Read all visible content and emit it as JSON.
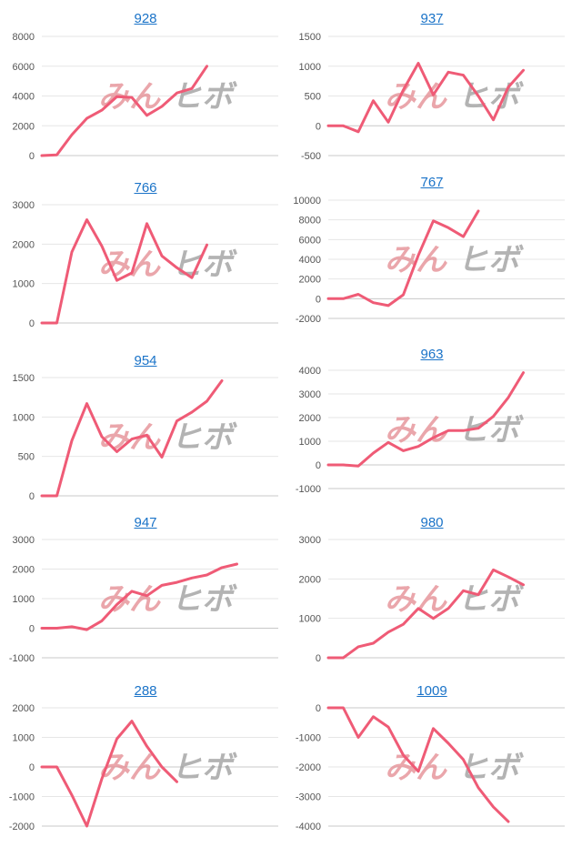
{
  "watermark": {
    "red": "みん",
    "grey": "ヒボ"
  },
  "colors": {
    "series": "#ef5b76",
    "title_link": "#1a73c8",
    "grid": "#e6e6e6"
  },
  "chart_data": [
    {
      "type": "line",
      "title": "928",
      "ylim": [
        0,
        8000
      ],
      "yticks": [
        0,
        2000,
        4000,
        6000,
        8000
      ],
      "series": [
        {
          "values": [
            0,
            50,
            1400,
            2500,
            3050,
            3950,
            3900,
            2700,
            3300,
            4200,
            4500,
            6000
          ]
        }
      ]
    },
    {
      "type": "line",
      "title": "937",
      "ylim": [
        -500,
        1500
      ],
      "yticks": [
        -500,
        0,
        500,
        1000,
        1500
      ],
      "series": [
        {
          "values": [
            0,
            0,
            -100,
            420,
            60,
            600,
            1050,
            520,
            900,
            850,
            500,
            100,
            650,
            930
          ]
        }
      ]
    },
    {
      "type": "line",
      "title": "766",
      "ylim": [
        0,
        3000
      ],
      "yticks": [
        0,
        1000,
        2000,
        3000
      ],
      "series": [
        {
          "values": [
            0,
            0,
            1800,
            2620,
            1950,
            1080,
            1270,
            2520,
            1700,
            1400,
            1150,
            1980
          ]
        }
      ]
    },
    {
      "type": "line",
      "title": "767",
      "ylim": [
        -2000,
        10000
      ],
      "yticks": [
        -2000,
        0,
        2000,
        4000,
        6000,
        8000,
        10000
      ],
      "series": [
        {
          "values": [
            0,
            0,
            450,
            -400,
            -700,
            400,
            4400,
            7900,
            7200,
            6300,
            8900
          ]
        }
      ]
    },
    {
      "type": "line",
      "title": "954",
      "ylim": [
        0,
        1500
      ],
      "yticks": [
        0,
        500,
        1000,
        1500
      ],
      "series": [
        {
          "values": [
            0,
            0,
            700,
            1170,
            750,
            560,
            720,
            770,
            490,
            950,
            1060,
            1200,
            1460
          ]
        }
      ]
    },
    {
      "type": "line",
      "title": "963",
      "ylim": [
        -1000,
        4000
      ],
      "yticks": [
        -1000,
        0,
        1000,
        2000,
        3000,
        4000
      ],
      "series": [
        {
          "values": [
            0,
            0,
            -50,
            500,
            950,
            600,
            780,
            1150,
            1450,
            1450,
            1550,
            2050,
            2850,
            3900
          ]
        }
      ]
    },
    {
      "type": "line",
      "title": "947",
      "ylim": [
        -1000,
        3000
      ],
      "yticks": [
        -1000,
        0,
        1000,
        2000,
        3000
      ],
      "series": [
        {
          "values": [
            0,
            0,
            50,
            -50,
            250,
            800,
            1250,
            1100,
            1450,
            1550,
            1700,
            1800,
            2050,
            2170
          ]
        }
      ]
    },
    {
      "type": "line",
      "title": "980",
      "ylim": [
        0,
        3000
      ],
      "yticks": [
        0,
        1000,
        2000,
        3000
      ],
      "series": [
        {
          "values": [
            0,
            0,
            280,
            370,
            650,
            850,
            1250,
            1000,
            1250,
            1700,
            1600,
            2230,
            2050,
            1850
          ]
        }
      ]
    },
    {
      "type": "line",
      "title": "288",
      "ylim": [
        -2000,
        2000
      ],
      "yticks": [
        -2000,
        -1000,
        0,
        1000,
        2000
      ],
      "series": [
        {
          "values": [
            0,
            0,
            -950,
            -2000,
            -400,
            950,
            1550,
            700,
            0,
            -500
          ]
        }
      ]
    },
    {
      "type": "line",
      "title": "1009",
      "ylim": [
        -4000,
        0
      ],
      "yticks": [
        -4000,
        -3000,
        -2000,
        -1000,
        0
      ],
      "series": [
        {
          "values": [
            0,
            0,
            -1000,
            -300,
            -650,
            -1600,
            -2150,
            -700,
            -1200,
            -1750,
            -2700,
            -3350,
            -3850
          ]
        }
      ]
    }
  ]
}
